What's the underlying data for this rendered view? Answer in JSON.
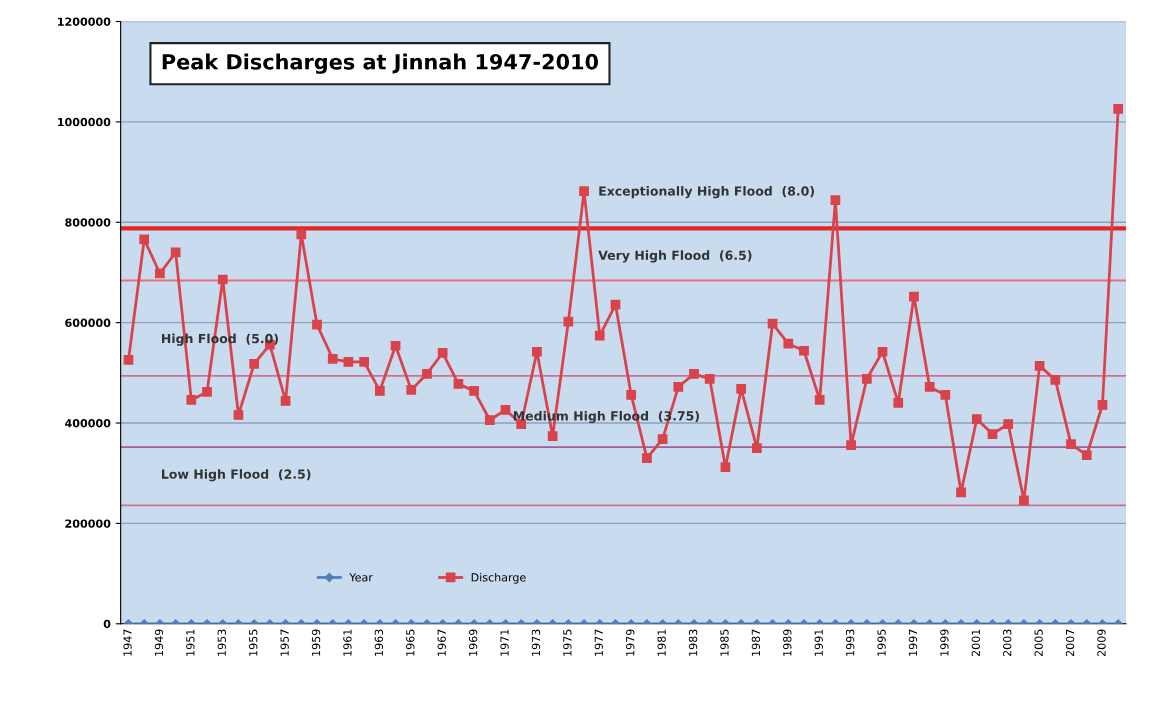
{
  "chart_data": {
    "type": "line",
    "title": "Peak Discharges at Jinnah 1947-2010",
    "categories": [
      "1947",
      null,
      "1949",
      null,
      "1951",
      null,
      "1953",
      null,
      "1955",
      null,
      "1957",
      null,
      "1959",
      null,
      "1961",
      null,
      "1963",
      null,
      "1965",
      null,
      "1967",
      null,
      "1969",
      null,
      "1971",
      null,
      "1973",
      null,
      "1975",
      null,
      "1977",
      null,
      "1979",
      null,
      "1981",
      null,
      "1983",
      null,
      "1985",
      null,
      "1987",
      null,
      "1989",
      null,
      "1991",
      null,
      "1993",
      null,
      "1995",
      null,
      "1997",
      null,
      "1999",
      null,
      "2001",
      null,
      "2003",
      null,
      "2005",
      null,
      "2007",
      null,
      "2009",
      null
    ],
    "series": [
      {
        "name": "Year",
        "color": "#4f81bd",
        "marker": "diamond",
        "values": [
          0,
          0,
          0,
          0,
          0,
          0,
          0,
          0,
          0,
          0,
          0,
          0,
          0,
          0,
          0,
          0,
          0,
          0,
          0,
          0,
          0,
          0,
          0,
          0,
          0,
          0,
          0,
          0,
          0,
          0,
          0,
          0,
          0,
          0,
          0,
          0,
          0,
          0,
          0,
          0,
          0,
          0,
          0,
          0,
          0,
          0,
          0,
          0,
          0,
          0,
          0,
          0,
          0,
          0,
          0,
          0,
          0,
          0,
          0,
          0,
          0,
          0,
          0,
          0
        ]
      },
      {
        "name": "Discharge",
        "color": "#d9434b",
        "marker": "square",
        "values": [
          526000,
          766000,
          698000,
          740000,
          446000,
          462000,
          686000,
          416000,
          518000,
          556000,
          444000,
          776000,
          596000,
          528000,
          522000,
          522000,
          464000,
          554000,
          466000,
          498000,
          540000,
          478000,
          464000,
          406000,
          426000,
          398000,
          542000,
          374000,
          602000,
          862000,
          574000,
          636000,
          456000,
          330000,
          368000,
          472000,
          498000,
          488000,
          312000,
          468000,
          350000,
          598000,
          558000,
          544000,
          446000,
          844000,
          356000,
          488000,
          542000,
          440000,
          652000,
          472000,
          456000,
          262000,
          408000,
          378000,
          398000,
          246000,
          514000,
          486000,
          358000,
          336000,
          436000,
          1026000
        ]
      }
    ],
    "ylim": [
      0,
      1200000
    ],
    "yticks": [
      0,
      200000,
      400000,
      600000,
      800000,
      1000000,
      1200000
    ],
    "grid": "y",
    "legend": "bottom",
    "line_style": "solid",
    "ref_lines": [
      {
        "axis": "y",
        "value": 788000,
        "color": "#e02828",
        "label": "Exceptionally High Flood  (8.0)"
      },
      {
        "axis": "y",
        "value": 684000,
        "color": "#e8707c",
        "label": "Very High Flood  (6.5)"
      },
      {
        "axis": "y",
        "value": 494000,
        "color": "#d07090",
        "label": "High Flood  (5.0)"
      },
      {
        "axis": "y",
        "value": 352000,
        "color": "#a06090",
        "label": "Medium High Flood  (3.75)"
      },
      {
        "axis": "y",
        "value": 236000,
        "color": "#d07090",
        "label": "Low High Flood  (2.5)"
      }
    ]
  }
}
